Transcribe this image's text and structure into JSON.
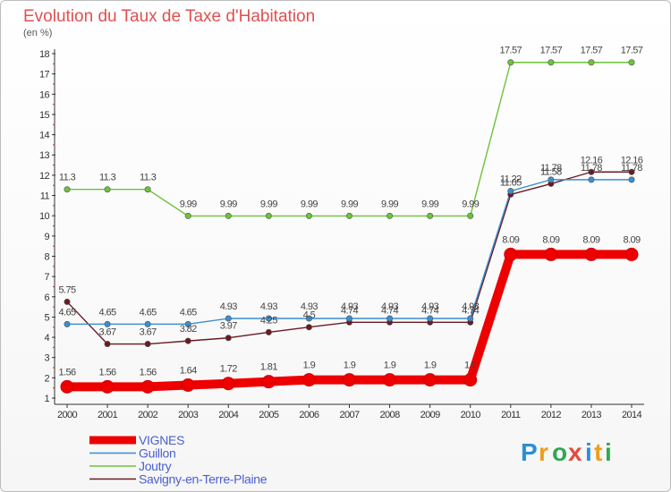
{
  "chart_data": {
    "type": "line",
    "title": "Evolution du Taux de Taxe d'Habitation",
    "subtitle": "(en %)",
    "x": [
      2000,
      2001,
      2002,
      2003,
      2004,
      2005,
      2006,
      2007,
      2008,
      2009,
      2010,
      2011,
      2012,
      2013,
      2014
    ],
    "ylim": [
      1,
      18
    ],
    "yticks": [
      1,
      2,
      3,
      4,
      5,
      6,
      7,
      8,
      9,
      10,
      11,
      12,
      13,
      14,
      15,
      16,
      17,
      18
    ],
    "grid": false,
    "legend_position": "bottom-left",
    "series": [
      {
        "name": "VIGNES",
        "color": "#ee0000",
        "values": [
          1.56,
          1.56,
          1.56,
          1.64,
          1.72,
          1.81,
          1.9,
          1.9,
          1.9,
          1.9,
          1.9,
          8.09,
          8.09,
          8.09,
          8.09
        ],
        "labels": [
          "1.56",
          "1.56",
          "1.56",
          "1.64",
          "1.72",
          "1.81",
          "1.9",
          "1.9",
          "1.9",
          "1.9",
          "1.9",
          "8.09",
          "8.09",
          "8.09",
          "8.09"
        ]
      },
      {
        "name": "Guillon",
        "color": "#3b8ed0",
        "values": [
          4.65,
          4.65,
          4.65,
          4.65,
          4.93,
          4.93,
          4.93,
          4.93,
          4.93,
          4.93,
          4.93,
          11.22,
          11.78,
          11.78,
          11.78
        ],
        "labels": [
          "4.65",
          "4.65",
          "4.65",
          "4.65",
          "4.93",
          "4.93",
          "4.93",
          "4.93",
          "4.93",
          "4.93",
          "4.93",
          "11.22",
          "11.78",
          "11.78",
          "11.78"
        ]
      },
      {
        "name": "Joutry",
        "color": "#6cc33a",
        "values": [
          11.3,
          11.3,
          11.3,
          9.99,
          9.99,
          9.99,
          9.99,
          9.99,
          9.99,
          9.99,
          9.99,
          17.57,
          17.57,
          17.57,
          17.57
        ],
        "labels": [
          "11.3",
          "11.3",
          "11.3",
          "9.99",
          "9.99",
          "9.99",
          "9.99",
          "9.99",
          "9.99",
          "9.99",
          "9.99",
          "17.57",
          "17.57",
          "17.57",
          "17.57"
        ]
      },
      {
        "name": "Savigny-en-Terre-Plaine",
        "color": "#6b1a22",
        "values": [
          5.75,
          3.67,
          3.67,
          3.82,
          3.97,
          4.25,
          4.5,
          4.74,
          4.74,
          4.74,
          4.74,
          11.05,
          11.58,
          12.16,
          12.16
        ],
        "labels": [
          "5.75",
          "3.67",
          "3.67",
          "3.82",
          "3.97",
          "4.25",
          "4.5",
          "4.74",
          "4.74",
          "4.74",
          "4.74",
          "11.05",
          "11.58",
          "12.16",
          "12.16"
        ]
      }
    ]
  },
  "logo": {
    "letters": [
      "P",
      "r",
      "o",
      "x",
      "i",
      "t",
      "i"
    ],
    "colors": [
      "#2b8fd6",
      "#f29c1e",
      "#2fa84f",
      "#e34a3a",
      "#2b8fd6",
      "#f29c1e",
      "#2fa84f"
    ]
  }
}
